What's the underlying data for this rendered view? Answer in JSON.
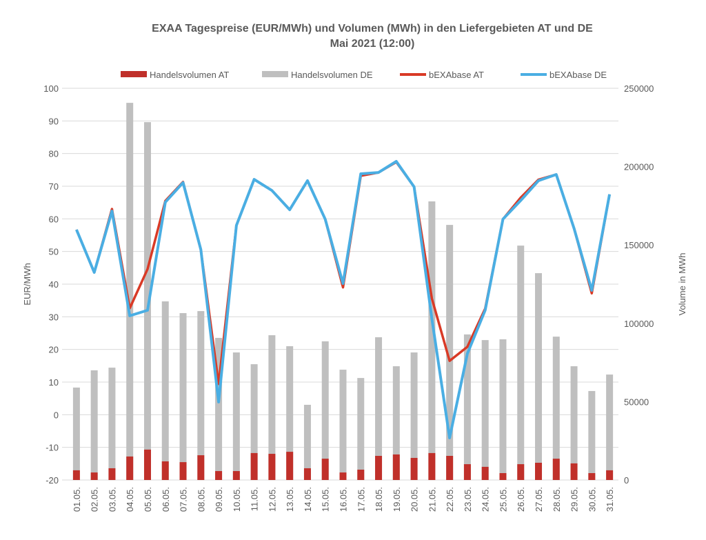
{
  "chart_data": {
    "type": "bar+line",
    "title": "EXAA Tagespreise (EUR/MWh) und Volumen (MWh) in den Liefergebieten AT und DE",
    "subtitle": "Mai 2021 (12:00)",
    "ylabel": "EUR/MWh",
    "y2label": "Volume in MWh",
    "ylim": [
      -20,
      100
    ],
    "y2lim": [
      0,
      250000
    ],
    "yticks": [
      -20,
      -10,
      0,
      10,
      20,
      30,
      40,
      50,
      60,
      70,
      80,
      90,
      100
    ],
    "y2ticks": [
      0,
      50000,
      100000,
      150000,
      200000,
      250000
    ],
    "grid": true,
    "legend_position": "top",
    "categories": [
      "01.05.",
      "02.05.",
      "03.05.",
      "04.05.",
      "05.05.",
      "06.05.",
      "07.05.",
      "08.05.",
      "09.05.",
      "10.05.",
      "11.05.",
      "12.05.",
      "13.05.",
      "14.05.",
      "15.05.",
      "16.05.",
      "17.05.",
      "18.05.",
      "19.05.",
      "20.05.",
      "21.05.",
      "22.05.",
      "23.05.",
      "24.05.",
      "25.05.",
      "26.05.",
      "27.05.",
      "28.05.",
      "29.05.",
      "30.05.",
      "31.05."
    ],
    "series": [
      {
        "name": "Handelsvolumen AT",
        "type": "bar",
        "axis": "right",
        "color": "#c0302a",
        "values": [
          6200,
          4800,
          7500,
          15000,
          19400,
          11900,
          11400,
          15800,
          5700,
          5700,
          17200,
          16700,
          18000,
          7500,
          13600,
          4800,
          6600,
          15400,
          16300,
          14100,
          17200,
          15400,
          10100,
          8400,
          4400,
          10100,
          11000,
          13600,
          10600,
          4400,
          6200
        ]
      },
      {
        "name": "Handelsvolumen DE",
        "type": "bar",
        "axis": "right",
        "color": "#bfbfbf",
        "values": [
          59000,
          70000,
          71700,
          240700,
          228400,
          114000,
          106500,
          107800,
          90700,
          81400,
          73900,
          92400,
          85400,
          48000,
          88500,
          70400,
          65100,
          91100,
          72600,
          81400,
          177800,
          162800,
          92900,
          89300,
          89800,
          149600,
          132000,
          91500,
          72600,
          56800,
          67300
        ]
      },
      {
        "name": "bEXAbase AT",
        "type": "line",
        "axis": "left",
        "color": "#d93a26",
        "values": [
          56.7,
          43.6,
          63.0,
          32.6,
          44.6,
          65.5,
          71.3,
          50.5,
          9.4,
          58.0,
          72.1,
          68.7,
          62.8,
          71.7,
          59.9,
          39.0,
          73.2,
          74.2,
          77.4,
          69.8,
          35.6,
          16.5,
          20.8,
          32.5,
          59.9,
          66.5,
          72.0,
          73.6,
          57.1,
          37.2,
          67.5
        ]
      },
      {
        "name": "bEXAbase DE",
        "type": "line",
        "axis": "left",
        "color": "#4aaee3",
        "values": [
          56.7,
          43.6,
          62.4,
          30.3,
          32.0,
          65.1,
          71.1,
          50.6,
          3.9,
          58.0,
          72.1,
          68.7,
          62.8,
          71.7,
          59.9,
          40.2,
          73.8,
          74.2,
          77.6,
          69.8,
          29.4,
          -7.1,
          18.7,
          32.0,
          59.9,
          65.6,
          71.7,
          73.6,
          57.1,
          38.1,
          67.5
        ]
      }
    ]
  }
}
